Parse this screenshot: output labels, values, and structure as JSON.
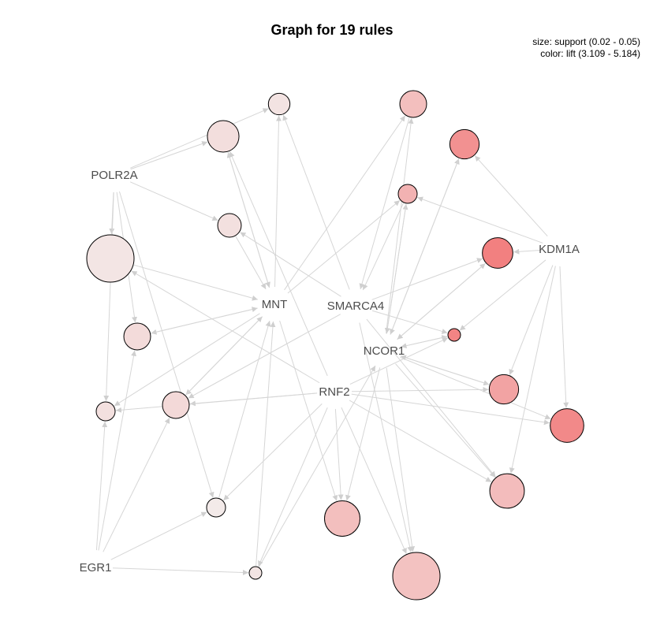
{
  "title": "Graph for 19 rules",
  "legend": {
    "size": "size: support (0.02 - 0.05)",
    "color": "color: lift (3.109 - 5.184)"
  },
  "colors": {
    "edge": "#d6d6d6",
    "label": "#4d4d4d",
    "lift_low": "#f3eae9",
    "lift_high": "#f28080"
  },
  "items": [
    "POLR2A",
    "MNT",
    "SMARCA4",
    "NCOR1",
    "RNF2",
    "KDM1A",
    "EGR1"
  ],
  "rules": [
    {
      "id": "r1",
      "support": 0.022,
      "lift": 3.25
    },
    {
      "id": "r2",
      "support": 0.029,
      "lift": 3.35
    },
    {
      "id": "r3",
      "support": 0.023,
      "lift": 3.3
    },
    {
      "id": "r4",
      "support": 0.05,
      "lift": 3.2
    },
    {
      "id": "r5",
      "support": 0.025,
      "lift": 3.4
    },
    {
      "id": "r6",
      "support": 0.025,
      "lift": 3.45
    },
    {
      "id": "r7",
      "support": 0.021,
      "lift": 3.3
    },
    {
      "id": "r8",
      "support": 0.021,
      "lift": 3.109
    },
    {
      "id": "r9",
      "support": 0.02,
      "lift": 3.2
    },
    {
      "id": "r10",
      "support": 0.025,
      "lift": 3.95
    },
    {
      "id": "r11",
      "support": 0.027,
      "lift": 4.85
    },
    {
      "id": "r12",
      "support": 0.021,
      "lift": 4.2
    },
    {
      "id": "r13",
      "support": 0.028,
      "lift": 5.184
    },
    {
      "id": "r14",
      "support": 0.02,
      "lift": 5.1
    },
    {
      "id": "r15",
      "support": 0.027,
      "lift": 4.5
    },
    {
      "id": "r16",
      "support": 0.031,
      "lift": 5.0
    },
    {
      "id": "r17",
      "support": 0.032,
      "lift": 4.0
    },
    {
      "id": "r18",
      "support": 0.033,
      "lift": 3.95
    },
    {
      "id": "r19",
      "support": 0.05,
      "lift": 3.9
    }
  ],
  "edges": [
    [
      "POLR2A",
      "r1"
    ],
    [
      "POLR2A",
      "r2"
    ],
    [
      "POLR2A",
      "r3"
    ],
    [
      "POLR2A",
      "r4"
    ],
    [
      "POLR2A",
      "r5"
    ],
    [
      "POLR2A",
      "r8"
    ],
    [
      "POLR2A",
      "r7"
    ],
    [
      "MNT",
      "r1"
    ],
    [
      "MNT",
      "r2"
    ],
    [
      "MNT",
      "r5"
    ],
    [
      "MNT",
      "r6"
    ],
    [
      "MNT",
      "r7"
    ],
    [
      "MNT",
      "r10"
    ],
    [
      "MNT",
      "r12"
    ],
    [
      "MNT",
      "r18"
    ],
    [
      "r4",
      "MNT"
    ],
    [
      "r2",
      "MNT"
    ],
    [
      "r3",
      "MNT"
    ],
    [
      "r5",
      "MNT"
    ],
    [
      "r6",
      "MNT"
    ],
    [
      "r8",
      "MNT"
    ],
    [
      "r9",
      "MNT"
    ],
    [
      "SMARCA4",
      "r1"
    ],
    [
      "SMARCA4",
      "r3"
    ],
    [
      "SMARCA4",
      "r6"
    ],
    [
      "SMARCA4",
      "r14"
    ],
    [
      "SMARCA4",
      "r13"
    ],
    [
      "SMARCA4",
      "r19"
    ],
    [
      "SMARCA4",
      "r17"
    ],
    [
      "r10",
      "SMARCA4"
    ],
    [
      "r12",
      "SMARCA4"
    ],
    [
      "NCOR1",
      "r12"
    ],
    [
      "NCOR1",
      "r11"
    ],
    [
      "NCOR1",
      "r13"
    ],
    [
      "NCOR1",
      "r14"
    ],
    [
      "NCOR1",
      "r15"
    ],
    [
      "NCOR1",
      "r16"
    ],
    [
      "NCOR1",
      "r17"
    ],
    [
      "NCOR1",
      "r18"
    ],
    [
      "NCOR1",
      "r19"
    ],
    [
      "NCOR1",
      "r10"
    ],
    [
      "r13",
      "NCOR1"
    ],
    [
      "r14",
      "NCOR1"
    ],
    [
      "r15",
      "NCOR1"
    ],
    [
      "r9",
      "NCOR1"
    ],
    [
      "r11",
      "NCOR1"
    ],
    [
      "r12",
      "NCOR1"
    ],
    [
      "RNF2",
      "r2"
    ],
    [
      "RNF2",
      "r4"
    ],
    [
      "RNF2",
      "r6"
    ],
    [
      "RNF2",
      "r7"
    ],
    [
      "RNF2",
      "r8"
    ],
    [
      "RNF2",
      "r9"
    ],
    [
      "RNF2",
      "r14"
    ],
    [
      "RNF2",
      "r15"
    ],
    [
      "RNF2",
      "r16"
    ],
    [
      "RNF2",
      "r17"
    ],
    [
      "RNF2",
      "r18"
    ],
    [
      "RNF2",
      "r19"
    ],
    [
      "KDM1A",
      "r11"
    ],
    [
      "KDM1A",
      "r12"
    ],
    [
      "KDM1A",
      "r13"
    ],
    [
      "KDM1A",
      "r14"
    ],
    [
      "KDM1A",
      "r15"
    ],
    [
      "KDM1A",
      "r16"
    ],
    [
      "KDM1A",
      "r17"
    ],
    [
      "EGR1",
      "r5"
    ],
    [
      "EGR1",
      "r7"
    ],
    [
      "EGR1",
      "r8"
    ],
    [
      "EGR1",
      "r9"
    ],
    [
      "EGR1",
      "r6"
    ]
  ]
}
